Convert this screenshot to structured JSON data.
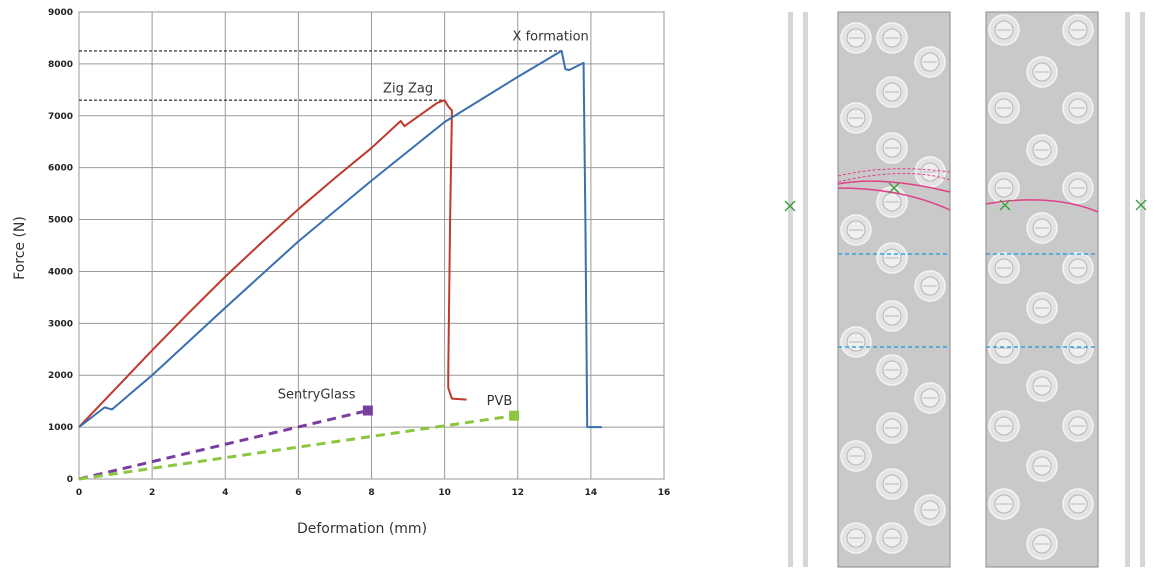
{
  "chart_data": {
    "type": "line",
    "title": "",
    "xlabel": "Deformation (mm)",
    "ylabel": "Force (N)",
    "xlim": [
      0,
      16
    ],
    "ylim": [
      0,
      9000
    ],
    "xticks": [
      "0",
      "2",
      "4",
      "6",
      "8",
      "10",
      "12",
      "14",
      "16"
    ],
    "yticks": [
      "0",
      "1000",
      "2000",
      "3000",
      "4000",
      "5000",
      "6000",
      "7000",
      "8000",
      "9000"
    ],
    "grid": true,
    "series": [
      {
        "name": "Zig Zag",
        "color": "#c0392b",
        "style": "solid",
        "x": [
          0,
          1,
          2,
          3,
          4,
          5,
          6,
          7,
          8,
          8.8,
          8.9,
          9.3,
          9.8,
          10,
          10.1,
          10.2,
          10.15,
          10.1,
          10.1,
          10.2,
          10.6
        ],
        "y": [
          1000,
          1740,
          2480,
          3200,
          3900,
          4560,
          5200,
          5800,
          6380,
          6900,
          6800,
          7000,
          7250,
          7300,
          7180,
          7100,
          5000,
          2100,
          1750,
          1550,
          1530
        ]
      },
      {
        "name": "X formation",
        "color": "#3a6fb0",
        "style": "solid",
        "x": [
          0,
          0.7,
          0.9,
          2,
          4,
          6,
          8,
          10,
          12,
          13.2,
          13.3,
          13.4,
          13.8,
          13.85,
          13.9,
          14.3
        ],
        "y": [
          1000,
          1380,
          1340,
          2000,
          3300,
          4580,
          5750,
          6880,
          7750,
          8250,
          7900,
          7880,
          8020,
          5000,
          1000,
          1000
        ]
      },
      {
        "name": "SentryGlass",
        "color": "#7a3ea0",
        "style": "dashed",
        "x": [
          0,
          7.9
        ],
        "y": [
          0,
          1320
        ]
      },
      {
        "name": "PVB",
        "color": "#8cc63f",
        "style": "dashed",
        "x": [
          0,
          11.9
        ],
        "y": [
          0,
          1220
        ]
      }
    ],
    "reference_lines": [
      {
        "y": 8250,
        "x_end": 13.2
      },
      {
        "y": 7300,
        "x_end": 10
      }
    ],
    "annotations": [
      {
        "text": "X formation",
        "x": 12.9,
        "y": 8450
      },
      {
        "text": "Zig Zag",
        "x": 9.0,
        "y": 7450
      },
      {
        "text": "SentryGlass",
        "x": 6.5,
        "y": 1550
      },
      {
        "text": "PVB",
        "x": 11.5,
        "y": 1430
      }
    ]
  },
  "diagram": {
    "markers": "x",
    "dashed_line_color": "#2fa6e0",
    "crack_color": "#e0408a",
    "panel_color": "#c8c8c8",
    "cross_color": "#3a9a3a"
  }
}
